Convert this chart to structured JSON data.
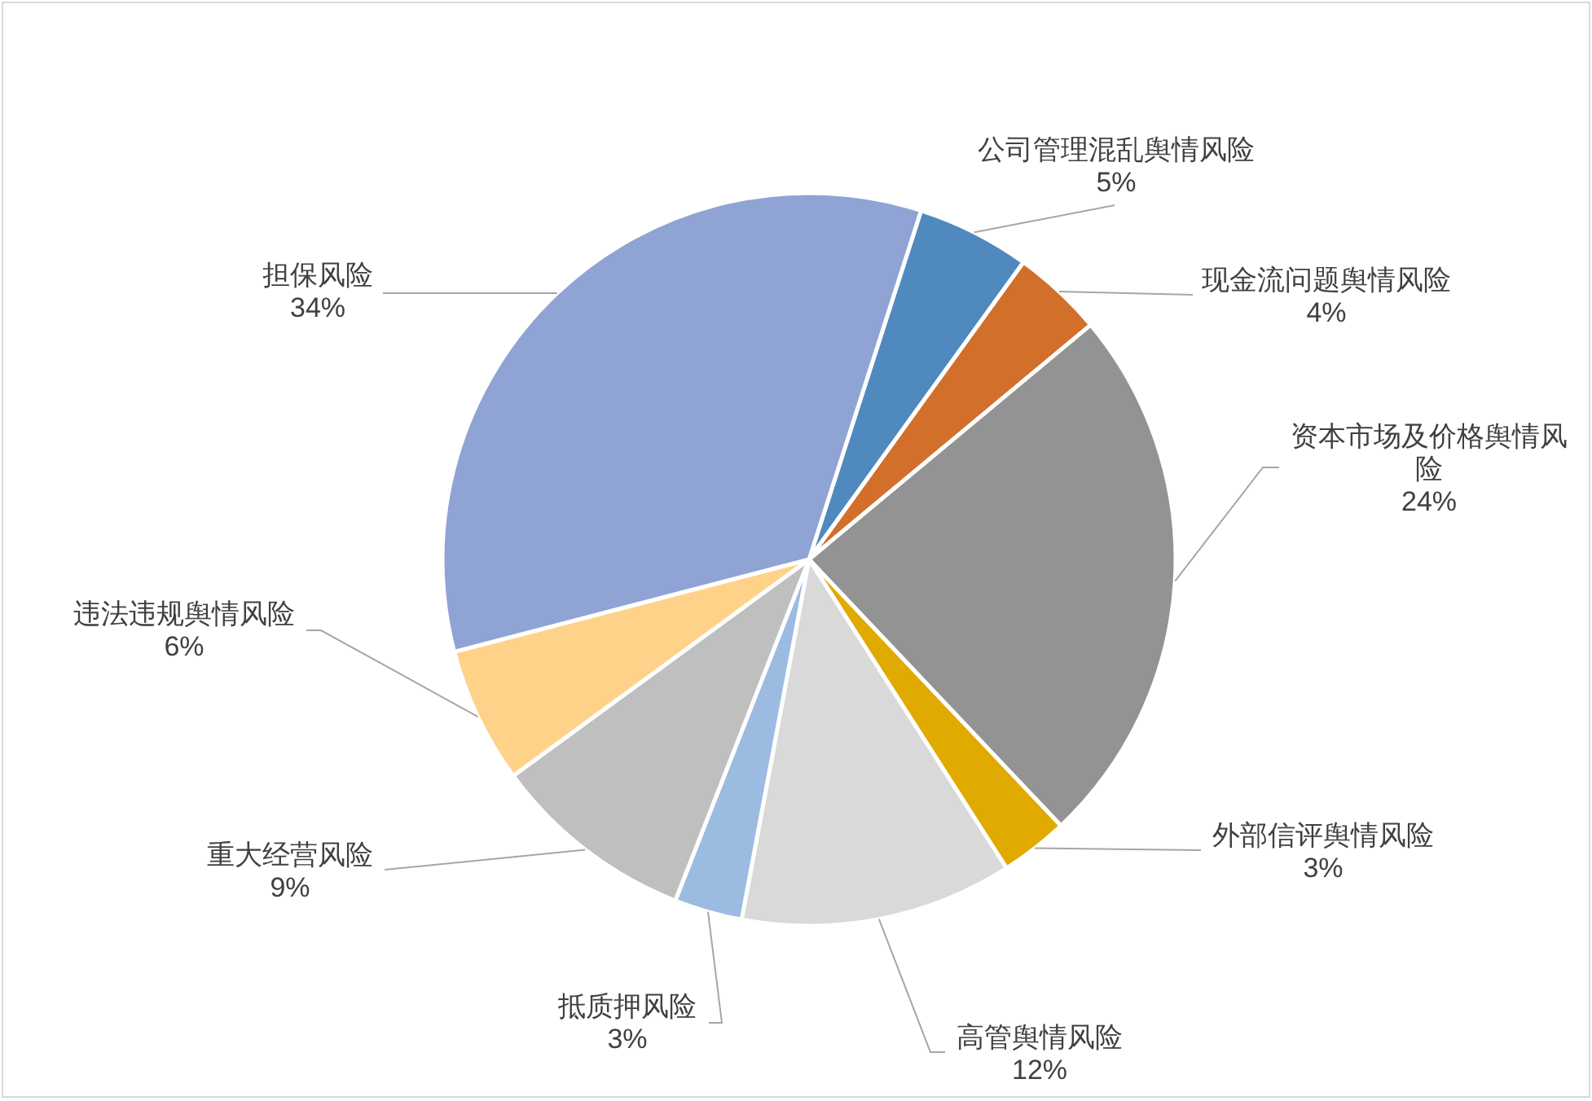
{
  "chart_data": {
    "type": "pie",
    "categories": [
      "公司管理混乱舆情风险",
      "现金流问题舆情风险",
      "资本市场及价格舆情风险",
      "外部信评舆情风险",
      "高管舆情风险",
      "抵质押风险",
      "重大经营风险",
      "违法违规舆情风险",
      "担保风险"
    ],
    "values": [
      5,
      4,
      24,
      3,
      12,
      3,
      9,
      6,
      34
    ],
    "value_labels": [
      "5%",
      "4%",
      "24%",
      "3%",
      "12%",
      "3%",
      "9%",
      "6%",
      "34%"
    ],
    "colors": [
      "#5089be",
      "#d26f2b",
      "#939393",
      "#e0aa00",
      "#d9d9d9",
      "#9bbbe1",
      "#bfbfbf",
      "#ffd28a",
      "#8fa3d4"
    ]
  }
}
